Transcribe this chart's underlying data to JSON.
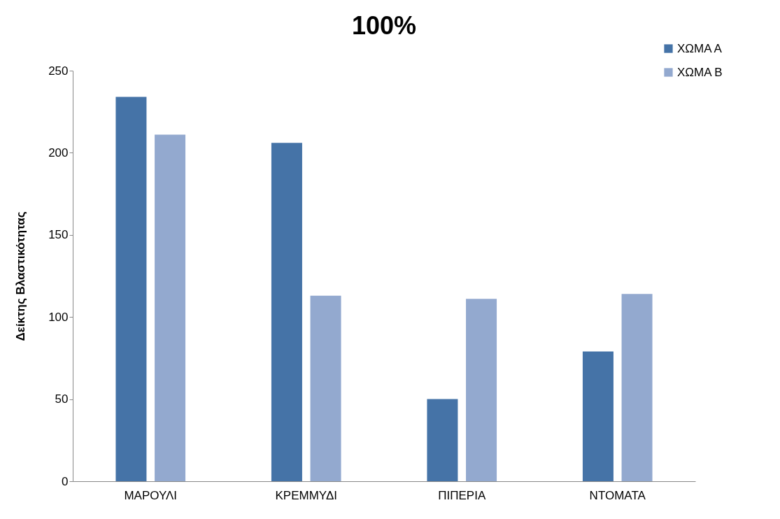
{
  "chart_data": {
    "type": "bar",
    "title": "100%",
    "ylabel": "Δείκτης Βλαστικότητας",
    "categories": [
      "ΜΑΡΟΥΛΙ",
      "ΚΡΕΜΜΥΔΙ",
      "ΠΙΠΕΡΙΑ",
      "ΝΤΟΜΑΤΑ"
    ],
    "series": [
      {
        "name": "ΧΩΜΑ Α",
        "color": "#4573a7",
        "values": [
          234,
          206,
          50,
          79
        ]
      },
      {
        "name": "ΧΩΜΑ Β",
        "color": "#93a9cf",
        "values": [
          211,
          113,
          111,
          114
        ]
      }
    ],
    "ylim": [
      0,
      250
    ],
    "yticks": [
      0,
      50,
      100,
      150,
      200,
      250
    ],
    "grid": false,
    "legend": "top right"
  }
}
